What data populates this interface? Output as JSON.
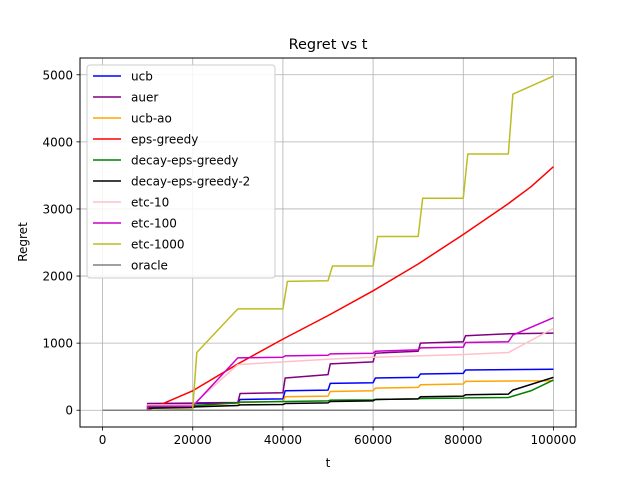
{
  "chart_data": {
    "type": "line",
    "title": "Regret vs t",
    "xlabel": "t",
    "ylabel": "Regret",
    "xlim": [
      -5000,
      105000
    ],
    "ylim": [
      -250,
      5250
    ],
    "xticks": [
      0,
      20000,
      40000,
      60000,
      80000,
      100000
    ],
    "xtick_labels": [
      "0",
      "20000",
      "40000",
      "60000",
      "80000",
      "100000"
    ],
    "yticks": [
      0,
      1000,
      2000,
      3000,
      4000,
      5000
    ],
    "ytick_labels": [
      "0",
      "1000",
      "2000",
      "3000",
      "4000",
      "5000"
    ],
    "grid": true,
    "legend_position": "top-left",
    "series": [
      {
        "name": "ucb",
        "color": "#0000ff",
        "points": [
          [
            0,
            0
          ],
          [
            10000,
            0
          ],
          [
            10000,
            80
          ],
          [
            20000,
            90
          ],
          [
            20500,
            100
          ],
          [
            30000,
            110
          ],
          [
            30500,
            160
          ],
          [
            40000,
            170
          ],
          [
            40500,
            290
          ],
          [
            50000,
            300
          ],
          [
            50500,
            400
          ],
          [
            60000,
            410
          ],
          [
            60500,
            480
          ],
          [
            70000,
            490
          ],
          [
            70500,
            540
          ],
          [
            80000,
            550
          ],
          [
            80500,
            600
          ],
          [
            90000,
            605
          ],
          [
            100000,
            610
          ]
        ]
      },
      {
        "name": "auer",
        "color": "#800080",
        "points": [
          [
            0,
            0
          ],
          [
            10000,
            0
          ],
          [
            10000,
            100
          ],
          [
            20000,
            105
          ],
          [
            20500,
            110
          ],
          [
            30000,
            115
          ],
          [
            30500,
            250
          ],
          [
            40000,
            260
          ],
          [
            40500,
            480
          ],
          [
            50000,
            530
          ],
          [
            50500,
            690
          ],
          [
            60000,
            720
          ],
          [
            60500,
            850
          ],
          [
            70000,
            880
          ],
          [
            70500,
            1000
          ],
          [
            80000,
            1020
          ],
          [
            80500,
            1110
          ],
          [
            90000,
            1140
          ],
          [
            100000,
            1150
          ]
        ]
      },
      {
        "name": "ucb-ao",
        "color": "#ffa500",
        "points": [
          [
            0,
            0
          ],
          [
            10000,
            0
          ],
          [
            10000,
            40
          ],
          [
            20000,
            50
          ],
          [
            20500,
            60
          ],
          [
            30000,
            70
          ],
          [
            30500,
            120
          ],
          [
            40000,
            130
          ],
          [
            40500,
            200
          ],
          [
            50000,
            210
          ],
          [
            50500,
            280
          ],
          [
            60000,
            290
          ],
          [
            60500,
            330
          ],
          [
            70000,
            340
          ],
          [
            70500,
            380
          ],
          [
            80000,
            390
          ],
          [
            80500,
            430
          ],
          [
            90000,
            435
          ],
          [
            100000,
            440
          ]
        ]
      },
      {
        "name": "eps-greedy",
        "color": "#ff0000",
        "points": [
          [
            0,
            0
          ],
          [
            10000,
            0
          ],
          [
            20000,
            290
          ],
          [
            30000,
            690
          ],
          [
            40000,
            1060
          ],
          [
            50000,
            1410
          ],
          [
            60000,
            1780
          ],
          [
            70000,
            2180
          ],
          [
            80000,
            2620
          ],
          [
            90000,
            3080
          ],
          [
            95000,
            3330
          ],
          [
            100000,
            3630
          ]
        ]
      },
      {
        "name": "decay-eps-greedy",
        "color": "#008000",
        "points": [
          [
            0,
            0
          ],
          [
            10000,
            0
          ],
          [
            10000,
            40
          ],
          [
            20000,
            60
          ],
          [
            20500,
            70
          ],
          [
            30000,
            110
          ],
          [
            30500,
            120
          ],
          [
            40000,
            130
          ],
          [
            40500,
            130
          ],
          [
            50000,
            140
          ],
          [
            50500,
            150
          ],
          [
            60000,
            155
          ],
          [
            60500,
            160
          ],
          [
            70000,
            170
          ],
          [
            70500,
            175
          ],
          [
            80000,
            180
          ],
          [
            80500,
            185
          ],
          [
            90000,
            190
          ],
          [
            95000,
            290
          ],
          [
            100000,
            450
          ]
        ]
      },
      {
        "name": "decay-eps-greedy-2",
        "color": "#000000",
        "points": [
          [
            0,
            0
          ],
          [
            10000,
            0
          ],
          [
            10000,
            30
          ],
          [
            20000,
            40
          ],
          [
            20500,
            50
          ],
          [
            30000,
            70
          ],
          [
            30500,
            80
          ],
          [
            40000,
            85
          ],
          [
            40500,
            100
          ],
          [
            50000,
            110
          ],
          [
            50500,
            130
          ],
          [
            60000,
            140
          ],
          [
            60500,
            160
          ],
          [
            70000,
            170
          ],
          [
            70500,
            200
          ],
          [
            80000,
            210
          ],
          [
            80500,
            230
          ],
          [
            90000,
            240
          ],
          [
            91000,
            300
          ],
          [
            100000,
            490
          ]
        ]
      },
      {
        "name": "etc-10",
        "color": "#ffc0cb",
        "points": [
          [
            0,
            0
          ],
          [
            10000,
            0
          ],
          [
            10000,
            80
          ],
          [
            20000,
            80
          ],
          [
            30000,
            680
          ],
          [
            40000,
            720
          ],
          [
            50000,
            760
          ],
          [
            60000,
            790
          ],
          [
            70000,
            810
          ],
          [
            80000,
            830
          ],
          [
            90000,
            860
          ],
          [
            100000,
            1220
          ]
        ]
      },
      {
        "name": "etc-100",
        "color": "#cc00cc",
        "points": [
          [
            0,
            0
          ],
          [
            10000,
            0
          ],
          [
            10000,
            60
          ],
          [
            20000,
            60
          ],
          [
            30000,
            780
          ],
          [
            40000,
            790
          ],
          [
            40500,
            810
          ],
          [
            50000,
            820
          ],
          [
            50500,
            840
          ],
          [
            60000,
            850
          ],
          [
            60500,
            880
          ],
          [
            70000,
            900
          ],
          [
            70500,
            930
          ],
          [
            80000,
            940
          ],
          [
            80500,
            1010
          ],
          [
            90000,
            1020
          ],
          [
            91000,
            1120
          ],
          [
            100000,
            1380
          ]
        ]
      },
      {
        "name": "etc-1000",
        "color": "#bcbd22",
        "points": [
          [
            0,
            0
          ],
          [
            10000,
            0
          ],
          [
            20000,
            10
          ],
          [
            20900,
            860
          ],
          [
            30000,
            1510
          ],
          [
            40000,
            1510
          ],
          [
            41000,
            1920
          ],
          [
            50000,
            1930
          ],
          [
            51000,
            2150
          ],
          [
            60000,
            2150
          ],
          [
            61000,
            2590
          ],
          [
            70000,
            2590
          ],
          [
            71000,
            3160
          ],
          [
            80000,
            3160
          ],
          [
            81000,
            3820
          ],
          [
            90000,
            3820
          ],
          [
            91000,
            4710
          ],
          [
            100000,
            4980
          ]
        ]
      },
      {
        "name": "oracle",
        "color": "#808080",
        "points": [
          [
            0,
            0
          ],
          [
            100000,
            0
          ]
        ]
      }
    ]
  }
}
